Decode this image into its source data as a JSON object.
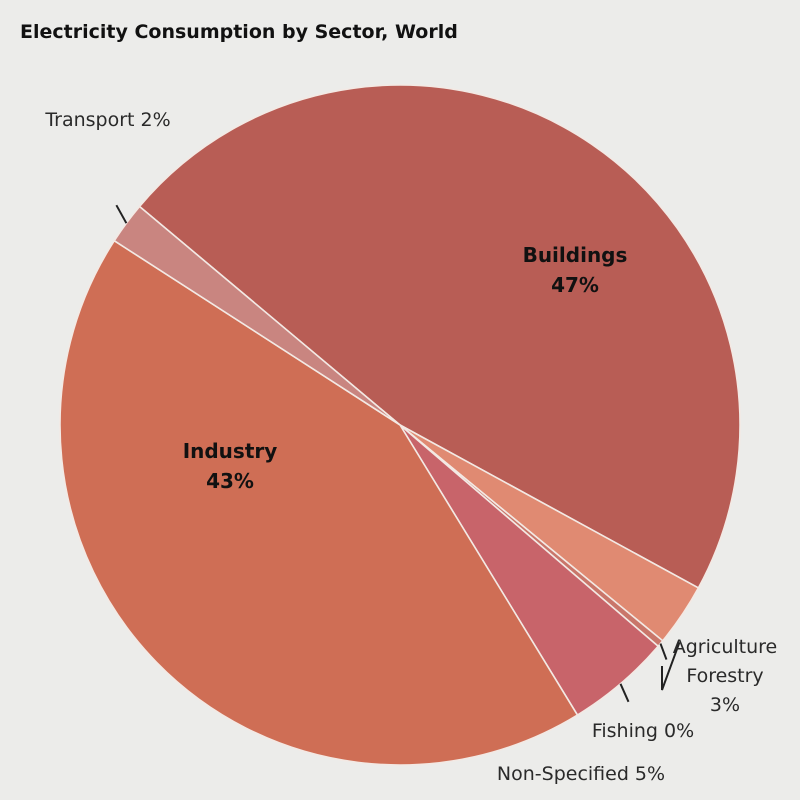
{
  "chart_data": {
    "type": "pie",
    "title": "Electricity Consumption by Sector, World",
    "slices": [
      {
        "label": "Buildings",
        "value": 47,
        "pct_label": "47%",
        "color": "#b85d55"
      },
      {
        "label": "Agriculture Forestry",
        "label_lines": [
          "Agriculture",
          "Forestry",
          "3%"
        ],
        "value": 3,
        "pct_label": "3%",
        "color": "#e08a72"
      },
      {
        "label": "Fishing",
        "value": 0,
        "pct_label": "Fishing 0%",
        "color": "#c9766a"
      },
      {
        "label": "Non-Specified",
        "value": 5,
        "pct_label": "Non-Specified 5%",
        "color": "#c8646a"
      },
      {
        "label": "Industry",
        "value": 43,
        "pct_label": "43%",
        "color": "#cf6e55"
      },
      {
        "label": "Transport",
        "value": 2,
        "pct_label": "Transport 2%",
        "color": "#c98580"
      }
    ],
    "legend": "none"
  }
}
